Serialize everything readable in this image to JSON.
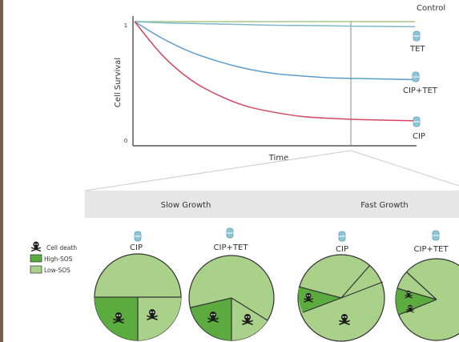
{
  "colors": {
    "control": "#a8c98a",
    "tet": "#7fb8c8",
    "cip_tet": "#5a9ccb",
    "cip": "#d2475f",
    "pill": "#8ec6d8",
    "light_green": "#a9d18a",
    "dark_green": "#5bab3e",
    "band": "#e6e6e6",
    "left_bar": "#7a5f52"
  },
  "chart": {
    "ylabel": "Cell Survival",
    "xlabel": "Time",
    "y_ticks": [
      "1",
      "0"
    ],
    "curve_labels": {
      "control": "Control",
      "tet": "TET",
      "cip_tet": "CIP+TET",
      "cip": "CIP"
    }
  },
  "chart_data": {
    "type": "line",
    "xlabel": "Time",
    "ylabel": "Cell Survival",
    "y_tick_labels": [
      "1",
      "0"
    ],
    "ylim": [
      0,
      1
    ],
    "x": [
      0,
      0.1,
      0.2,
      0.3,
      0.4,
      0.5,
      0.6,
      0.7,
      0.8,
      0.9,
      1.0
    ],
    "series": [
      {
        "name": "Control",
        "values": [
          1.0,
          1.0,
          1.0,
          1.0,
          1.0,
          1.0,
          1.0,
          1.0,
          1.0,
          1.0,
          1.0
        ]
      },
      {
        "name": "TET",
        "values": [
          1.0,
          0.99,
          0.985,
          0.98,
          0.975,
          0.97,
          0.968,
          0.965,
          0.962,
          0.96,
          0.958
        ]
      },
      {
        "name": "CIP+TET",
        "values": [
          1.0,
          0.86,
          0.75,
          0.67,
          0.61,
          0.57,
          0.55,
          0.535,
          0.53,
          0.525,
          0.52
        ]
      },
      {
        "name": "CIP",
        "values": [
          1.0,
          0.72,
          0.52,
          0.39,
          0.3,
          0.25,
          0.215,
          0.2,
          0.19,
          0.185,
          0.18
        ]
      }
    ]
  },
  "growth": {
    "slow": "Slow Growth",
    "fast": "Fast Growth"
  },
  "legend": {
    "cell_death": "Cell death",
    "high_sos": "High-SOS",
    "low_sos": "Low-SOS"
  },
  "pies": [
    {
      "label": "CIP",
      "growth": "slow",
      "pill": false
    },
    {
      "label": "CIP+TET",
      "growth": "slow",
      "pill": true
    },
    {
      "label": "CIP",
      "growth": "fast",
      "pill": true
    },
    {
      "label": "CIP+TET",
      "growth": "fast",
      "pill": true
    }
  ]
}
